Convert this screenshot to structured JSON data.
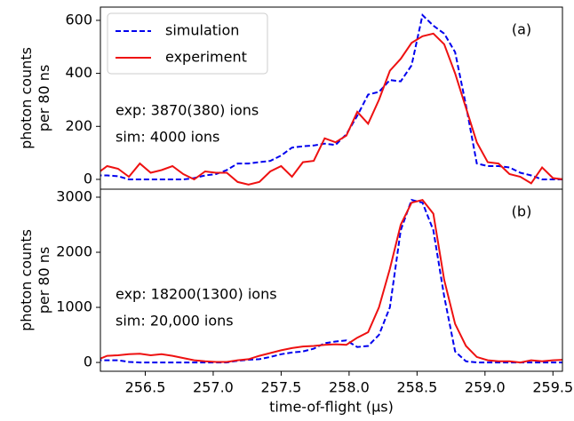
{
  "chart_data": [
    {
      "type": "line",
      "panel_label": "(a)",
      "ylabel": [
        "photon counts",
        "per 80 ns"
      ],
      "annotations": [
        "exp: 3870(380) ions",
        "sim: 4000 ions"
      ],
      "legend": "upper left",
      "xlim": [
        256.17,
        259.57
      ],
      "ylim": [
        -37,
        650
      ],
      "yticks": [
        0,
        200,
        400,
        600
      ],
      "x": [
        256.14,
        256.22,
        256.3,
        256.38,
        256.46,
        256.54,
        256.62,
        256.7,
        256.78,
        256.86,
        256.94,
        257.02,
        257.1,
        257.18,
        257.26,
        257.34,
        257.42,
        257.5,
        257.58,
        257.66,
        257.74,
        257.82,
        257.9,
        257.98,
        258.06,
        258.14,
        258.22,
        258.3,
        258.38,
        258.46,
        258.54,
        258.62,
        258.7,
        258.78,
        258.86,
        258.94,
        259.02,
        259.1,
        259.18,
        259.26,
        259.34,
        259.42,
        259.5,
        259.58
      ],
      "series": [
        {
          "name": "simulation",
          "color": "#0000ee",
          "dashed": true,
          "values": [
            15,
            15,
            12,
            0,
            0,
            0,
            0,
            0,
            0,
            5,
            15,
            20,
            35,
            60,
            60,
            65,
            70,
            90,
            120,
            125,
            128,
            135,
            130,
            170,
            240,
            320,
            330,
            375,
            370,
            430,
            620,
            580,
            550,
            480,
            280,
            60,
            50,
            50,
            45,
            25,
            15,
            0,
            0,
            0
          ]
        },
        {
          "name": "experiment",
          "color": "#ee1111",
          "dashed": false,
          "values": [
            20,
            50,
            40,
            10,
            60,
            25,
            35,
            50,
            20,
            0,
            30,
            25,
            25,
            -10,
            -20,
            -10,
            30,
            50,
            10,
            65,
            70,
            155,
            140,
            165,
            255,
            210,
            300,
            410,
            455,
            515,
            540,
            550,
            510,
            400,
            270,
            140,
            65,
            60,
            20,
            10,
            -15,
            45,
            5,
            0
          ]
        }
      ]
    },
    {
      "type": "line",
      "panel_label": "(b)",
      "ylabel": [
        "photon counts",
        "per 80 ns"
      ],
      "annotations": [
        "exp: 18200(1300) ions",
        "sim: 20,000 ions"
      ],
      "xlabel": "time-of-flight (μs)",
      "xlim": [
        256.17,
        259.57
      ],
      "ylim": [
        -160,
        3145
      ],
      "yticks": [
        0,
        1000,
        2000,
        3000
      ],
      "xticks": [
        256.5,
        {
          "value": 257,
          "label": "257.0"
        },
        257.5,
        {
          "value": 258,
          "label": "258.0"
        },
        258.5,
        {
          "value": 259,
          "label": "259.0"
        },
        259.5
      ],
      "x": [
        256.14,
        256.22,
        256.3,
        256.38,
        256.46,
        256.54,
        256.62,
        256.7,
        256.78,
        256.86,
        256.94,
        257.02,
        257.1,
        257.18,
        257.26,
        257.34,
        257.42,
        257.5,
        257.58,
        257.66,
        257.74,
        257.82,
        257.9,
        257.98,
        258.06,
        258.14,
        258.22,
        258.3,
        258.38,
        258.46,
        258.54,
        258.62,
        258.7,
        258.78,
        258.86,
        258.94,
        259.02,
        259.1,
        259.18,
        259.26,
        259.34,
        259.42,
        259.5,
        259.58
      ],
      "series": [
        {
          "name": "simulation",
          "color": "#0000ee",
          "dashed": true,
          "values": [
            40,
            40,
            40,
            10,
            0,
            0,
            0,
            0,
            0,
            0,
            0,
            0,
            0,
            30,
            50,
            60,
            100,
            150,
            180,
            200,
            250,
            350,
            380,
            400,
            280,
            300,
            500,
            1000,
            2400,
            2950,
            2900,
            2400,
            1200,
            200,
            20,
            0,
            0,
            0,
            0,
            0,
            0,
            0,
            0,
            0
          ]
        },
        {
          "name": "experiment",
          "color": "#ee1111",
          "dashed": false,
          "values": [
            40,
            120,
            130,
            150,
            160,
            130,
            150,
            120,
            80,
            40,
            20,
            10,
            10,
            40,
            60,
            120,
            170,
            220,
            260,
            290,
            300,
            320,
            330,
            320,
            450,
            550,
            1000,
            1700,
            2500,
            2900,
            2950,
            2700,
            1500,
            700,
            300,
            100,
            40,
            20,
            20,
            0,
            40,
            20,
            40,
            50
          ]
        }
      ]
    }
  ]
}
